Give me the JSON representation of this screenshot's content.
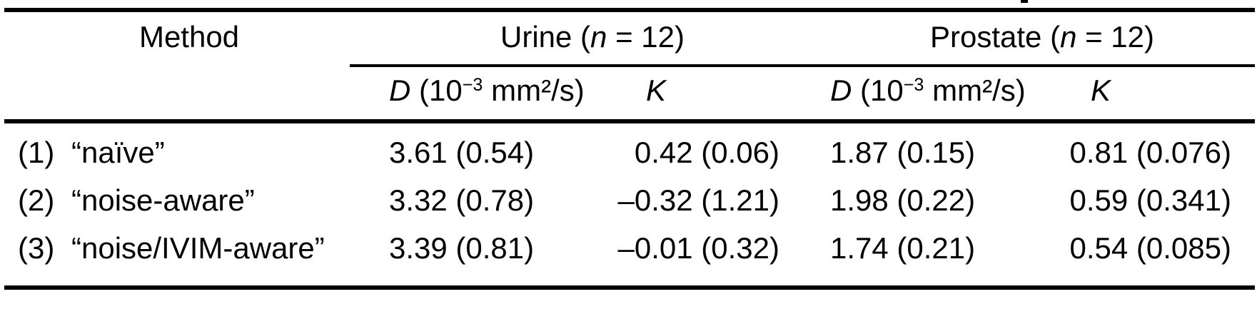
{
  "table": {
    "header": {
      "method_label": "Method",
      "urine": {
        "prefix": "Urine (",
        "n_symbol": "n",
        "suffix": " = 12)"
      },
      "prostate": {
        "prefix": "Prostate (",
        "n_symbol": "n",
        "suffix": " = 12)"
      }
    },
    "subheader": {
      "d_symbol": "D",
      "d_prefix": " (10",
      "d_exponent": "−3",
      "d_suffix": " mm²/s)",
      "k_symbol": "K"
    },
    "rows": [
      {
        "num": "(1)",
        "method": "“naïve”",
        "urine_d": "3.61 (0.54)",
        "urine_k": "0.42 (0.06)",
        "prostate_d": "1.87 (0.15)",
        "prostate_k": "0.81 (0.076)"
      },
      {
        "num": "(2)",
        "method": "“noise-aware”",
        "urine_d": "3.32 (0.78)",
        "urine_k": "–0.32 (1.21)",
        "prostate_d": "1.98 (0.22)",
        "prostate_k": "0.59 (0.341)"
      },
      {
        "num": "(3)",
        "method": "“noise/IVIM-aware”",
        "urine_d": "3.39 (0.81)",
        "urine_k": "–0.01 (0.32)",
        "prostate_d": "1.74 (0.21)",
        "prostate_k": "0.54 (0.085)"
      }
    ],
    "colors": {
      "text": "#000000",
      "background": "#ffffff",
      "rule": "#000000"
    }
  }
}
